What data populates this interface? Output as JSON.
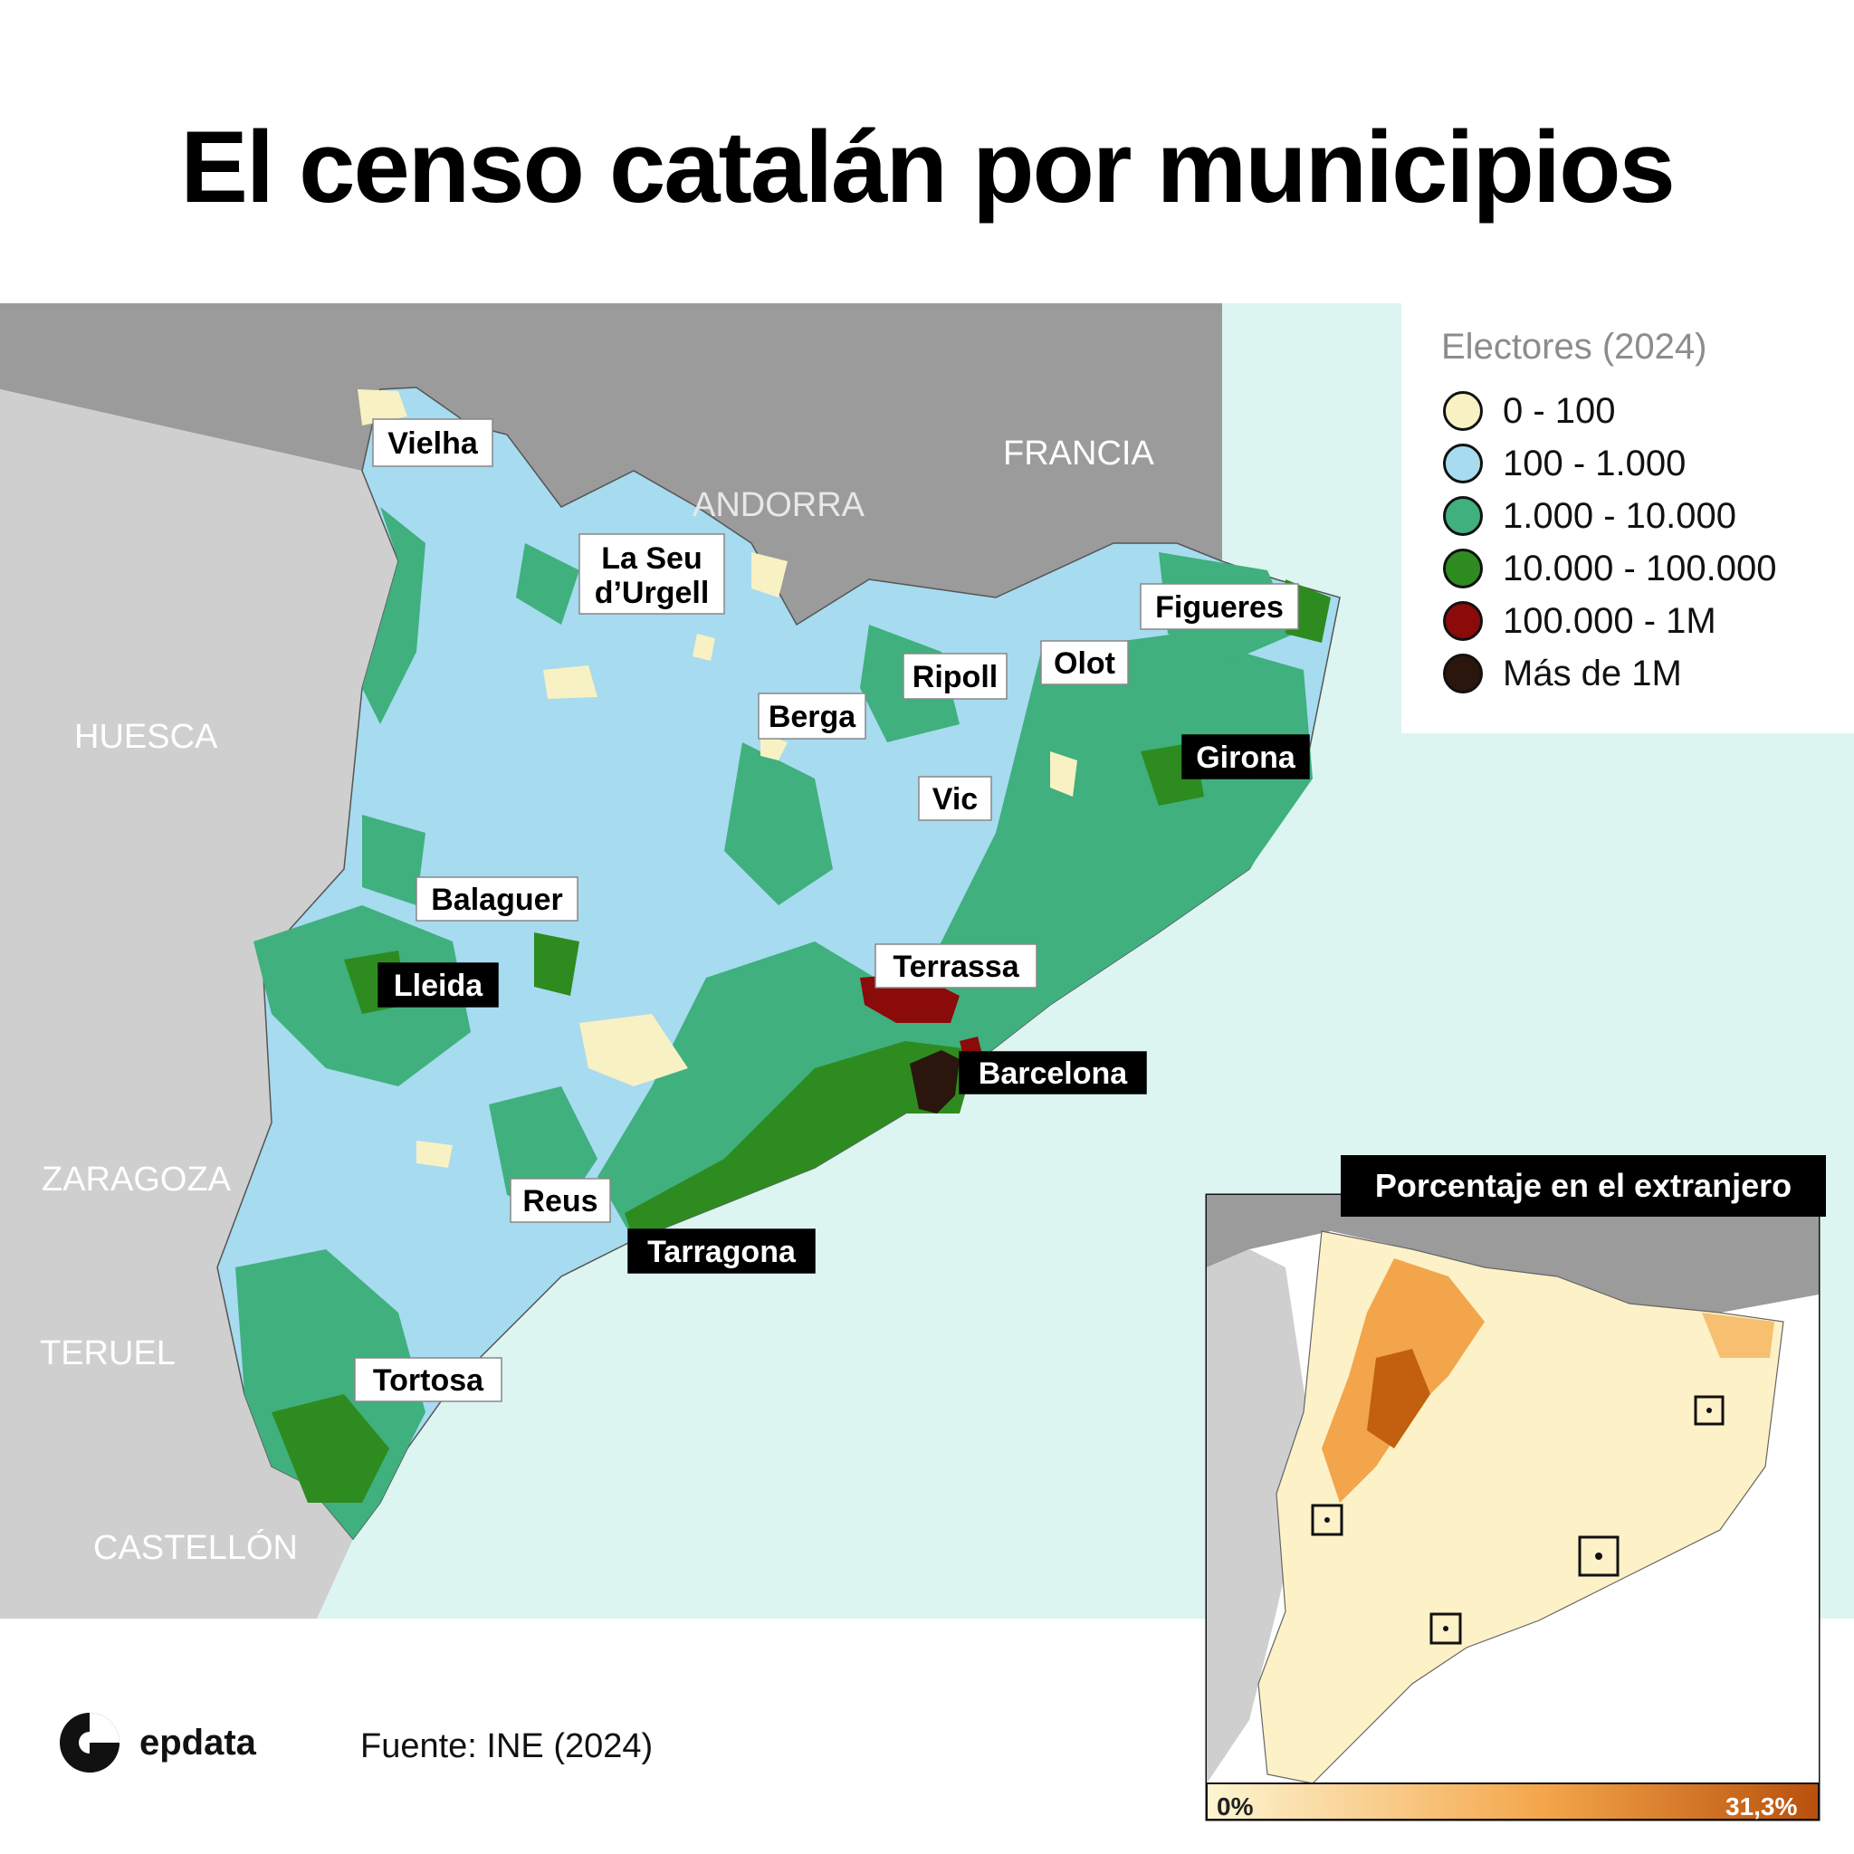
{
  "title": "El censo catalán por municipios",
  "regions": {
    "francia": "FRANCIA",
    "andorra": "ANDORRA",
    "huesca": "HUESCA",
    "zaragoza": "ZARAGOZA",
    "teruel": "TERUEL",
    "castellon": "CASTELLÓN"
  },
  "cities": [
    {
      "name": "Vielha",
      "style": "white"
    },
    {
      "name": "La Seu",
      "name2": "d’Urgell",
      "style": "white"
    },
    {
      "name": "Figueres",
      "style": "white"
    },
    {
      "name": "Ripoll",
      "style": "white"
    },
    {
      "name": "Olot",
      "style": "white"
    },
    {
      "name": "Berga",
      "style": "white"
    },
    {
      "name": "Girona",
      "style": "black"
    },
    {
      "name": "Vic",
      "style": "white"
    },
    {
      "name": "Balaguer",
      "style": "white"
    },
    {
      "name": "Terrassa",
      "style": "white"
    },
    {
      "name": "Lleida",
      "style": "black"
    },
    {
      "name": "Barcelona",
      "style": "black"
    },
    {
      "name": "Reus",
      "style": "white"
    },
    {
      "name": "Tarragona",
      "style": "black"
    },
    {
      "name": "Tortosa",
      "style": "white"
    }
  ],
  "legend": {
    "title": "Electores (2024)",
    "items": [
      {
        "label": "0 - 100",
        "color": "#f8f1c4"
      },
      {
        "label": "100 - 1.000",
        "color": "#a7dbef"
      },
      {
        "label": "1.000 - 10.000",
        "color": "#3fb07e"
      },
      {
        "label": "10.000 - 100.000",
        "color": "#2e8b1f"
      },
      {
        "label": "100.000 - 1M",
        "color": "#8b0a0a"
      },
      {
        "label": "Más de 1M",
        "color": "#2a160c"
      }
    ]
  },
  "inset": {
    "title": "Porcentaje en el extranjero",
    "scale_min": "0%",
    "scale_max": "31,3%"
  },
  "footer": {
    "source": "Fuente: INE (2024)",
    "brand": "epdata"
  },
  "colors": {
    "sea": "#dcf5f1",
    "foreign_land_dark": "#9b9b9b",
    "foreign_land_light": "#cfcfcf",
    "scale_low": "#fdf6d2",
    "scale_high": "#b8500c"
  }
}
